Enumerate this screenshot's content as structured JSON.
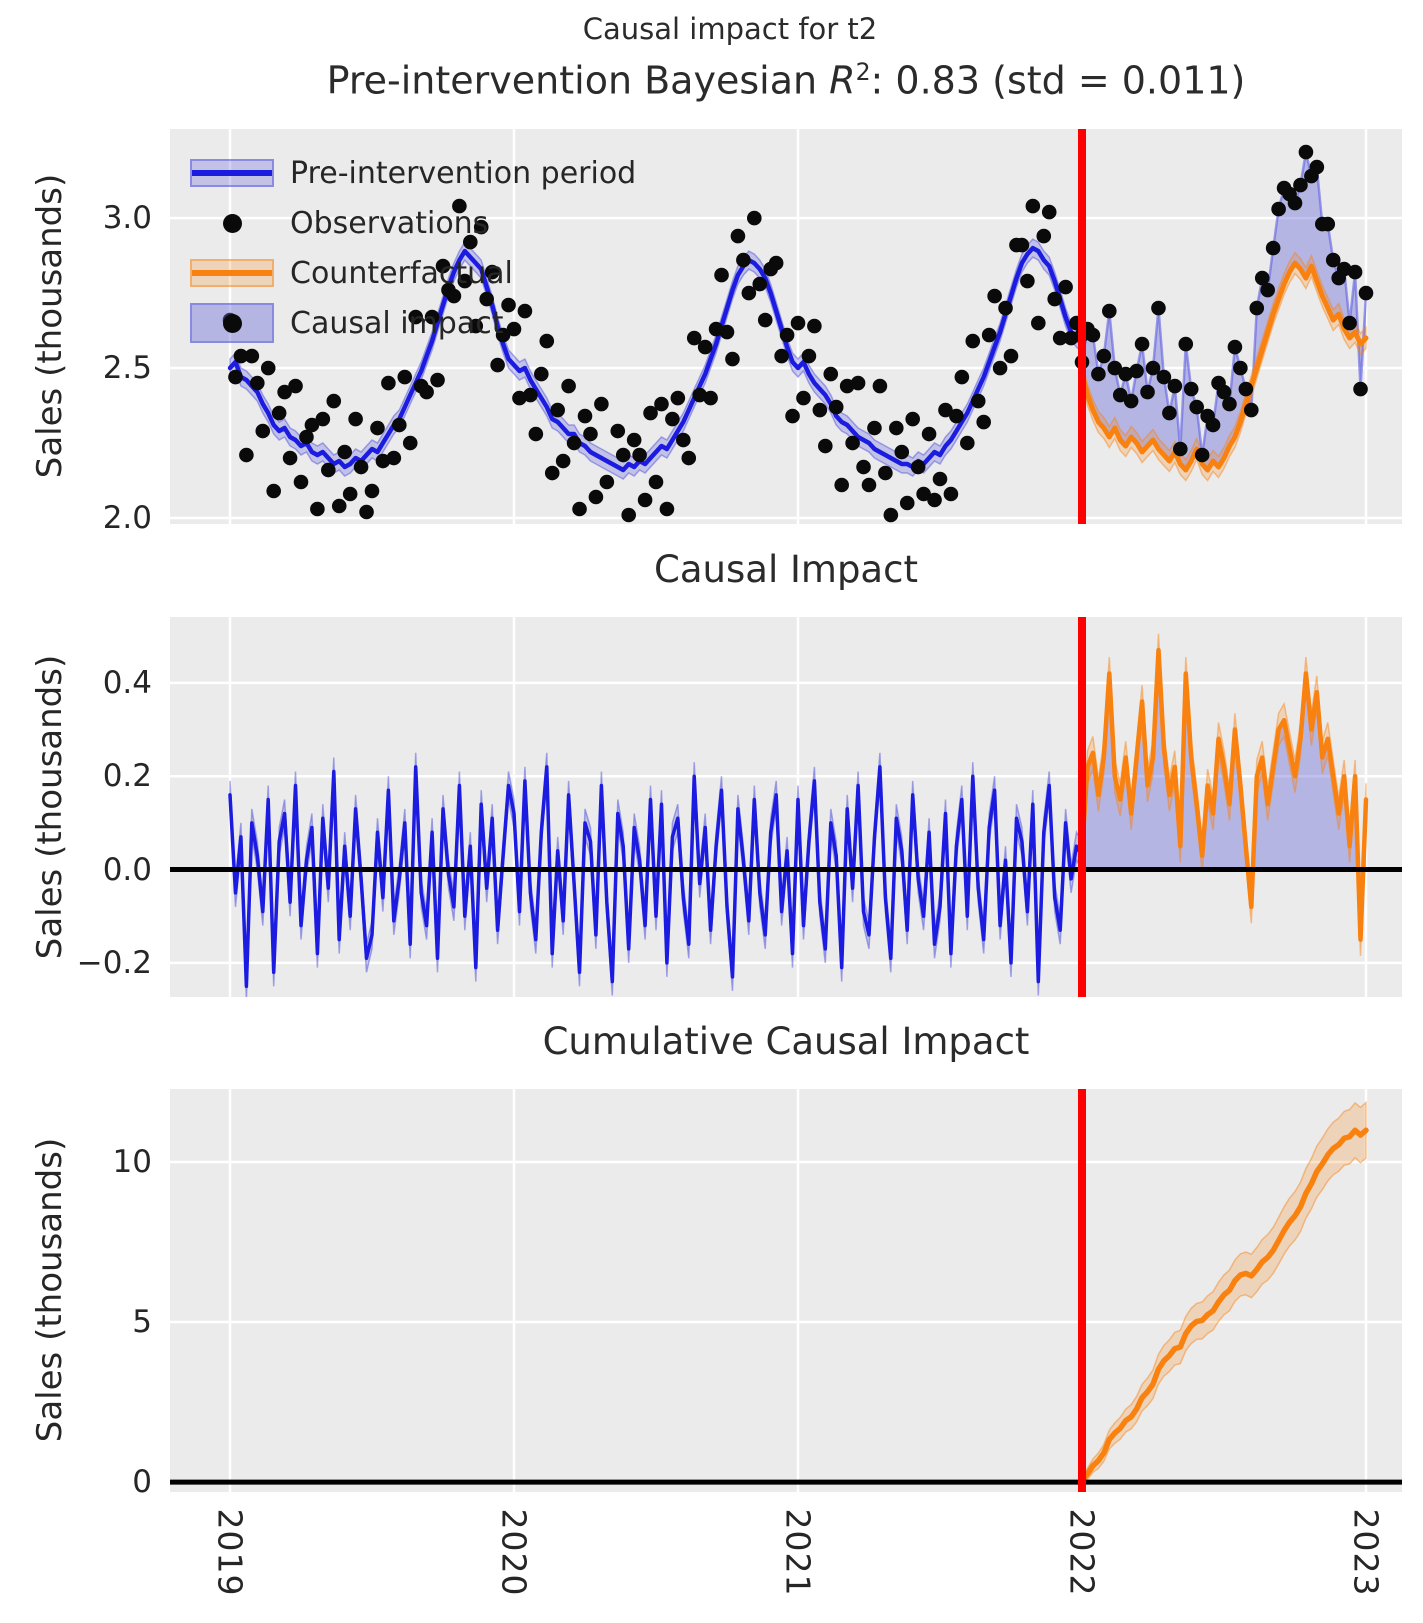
{
  "figure": {
    "suptitle": "Causal impact for t2",
    "title": {
      "prefix": "Pre-intervention Bayesian ",
      "stat_symbol": "R",
      "exponent": "2",
      "suffix": ": 0.83 (std = 0.011)"
    },
    "background": "#ffffff",
    "panel_background": "#ebebeb"
  },
  "colors": {
    "blue": "#1c1ce0",
    "blue_band": "rgba(70,70,220,0.25)",
    "blue_band_edge": "rgba(70,70,220,0.45)",
    "post_obs_line": "rgba(95,95,228,0.6)",
    "impact_fill": "rgba(108,108,216,0.42)",
    "orange": "#f8810f",
    "orange_band": "rgba(248,129,15,0.22)",
    "orange_band_edge": "rgba(248,129,15,0.45)",
    "red": "#ff0000",
    "grid": "#ffffff",
    "dot": "#0a0a0a",
    "panel_bg": "#ebebeb",
    "text": "#262626"
  },
  "legend": {
    "items": [
      {
        "label": "Pre-intervention period",
        "type": "band-line",
        "color": "#1c1ce0"
      },
      {
        "label": "Observations",
        "type": "dot",
        "color": "#0a0a0a"
      },
      {
        "label": "Counterfactual",
        "type": "band-line",
        "color": "#f8810f"
      },
      {
        "label": "Causal impact",
        "type": "patch-dot",
        "color": "rgba(108,108,216,0.42)"
      }
    ]
  },
  "axes": {
    "x": {
      "tick_values": [
        2019,
        2020,
        2021,
        2022,
        2023
      ],
      "tick_labels": [
        "2019",
        "2020",
        "2021",
        "2022",
        "2023"
      ],
      "lim": [
        2018.789,
        2023.127
      ]
    },
    "panels": [
      {
        "title": "",
        "ylabel": "Sales (thousands)",
        "ytick_values": [
          2.0,
          2.5,
          3.0
        ],
        "ytick_labels": [
          "2.0",
          "2.5",
          "3.0"
        ],
        "ylim": [
          1.98,
          3.297
        ]
      },
      {
        "title": "Causal Impact",
        "ylabel": "Sales (thousands)",
        "ytick_values": [
          -0.2,
          0.0,
          0.2,
          0.4
        ],
        "ytick_labels": [
          "−0.2",
          "0.0",
          "0.2",
          "0.4"
        ],
        "ylim": [
          -0.273,
          0.541
        ]
      },
      {
        "title": "Cumulative Causal Impact",
        "ylabel": "Sales (thousands)",
        "ytick_values": [
          0,
          5,
          10
        ],
        "ytick_labels": [
          "0",
          "5",
          "10"
        ],
        "ylim": [
          -0.31,
          12.28
        ]
      }
    ]
  },
  "intervention": {
    "x": 2022,
    "color": "#ff0000"
  },
  "chart_data": {
    "type": "line",
    "title": "Pre-intervention Bayesian R²: 0.83 (std = 0.011)",
    "x_unit": "year, weekly samples",
    "x_start": 2019.0,
    "dt_years": 0.0192307692,
    "intervention_x": 2022.0,
    "pre_band_halfwidth": 0.03,
    "post_band_halfwidth": 0.035,
    "cumulative_band_halfwidth_scale": 0.12,
    "final_cumulative_impact": 10.99,
    "derived": {
      "observations": "pre: pre_mean + pre_impact_obs_minus_mean; post: post_counterfactual_mean + post_impact_obs_minus_cf",
      "causal_impact_panel": "pre_impact_obs_minus_mean then post_impact_obs_minus_cf",
      "cumulative_impact": "cumulative sum of post_impact_obs_minus_cf"
    },
    "pre_mean": [
      2.5,
      2.52,
      2.47,
      2.46,
      2.44,
      2.42,
      2.38,
      2.35,
      2.31,
      2.29,
      2.3,
      2.27,
      2.26,
      2.24,
      2.25,
      2.22,
      2.21,
      2.22,
      2.2,
      2.18,
      2.19,
      2.17,
      2.18,
      2.2,
      2.19,
      2.21,
      2.23,
      2.22,
      2.25,
      2.28,
      2.31,
      2.33,
      2.37,
      2.41,
      2.45,
      2.49,
      2.54,
      2.59,
      2.65,
      2.71,
      2.77,
      2.82,
      2.86,
      2.89,
      2.87,
      2.85,
      2.83,
      2.77,
      2.71,
      2.64,
      2.58,
      2.53,
      2.51,
      2.49,
      2.5,
      2.46,
      2.43,
      2.4,
      2.37,
      2.33,
      2.32,
      2.3,
      2.28,
      2.28,
      2.25,
      2.24,
      2.22,
      2.21,
      2.2,
      2.19,
      2.18,
      2.17,
      2.16,
      2.18,
      2.17,
      2.19,
      2.18,
      2.2,
      2.22,
      2.24,
      2.23,
      2.26,
      2.29,
      2.32,
      2.36,
      2.4,
      2.44,
      2.48,
      2.53,
      2.58,
      2.64,
      2.7,
      2.76,
      2.81,
      2.84,
      2.86,
      2.85,
      2.83,
      2.8,
      2.75,
      2.69,
      2.63,
      2.57,
      2.52,
      2.5,
      2.52,
      2.48,
      2.45,
      2.43,
      2.41,
      2.38,
      2.34,
      2.32,
      2.31,
      2.29,
      2.27,
      2.26,
      2.25,
      2.23,
      2.22,
      2.21,
      2.2,
      2.19,
      2.18,
      2.18,
      2.17,
      2.19,
      2.18,
      2.2,
      2.22,
      2.21,
      2.24,
      2.26,
      2.29,
      2.32,
      2.35,
      2.39,
      2.43,
      2.47,
      2.52,
      2.57,
      2.62,
      2.68,
      2.74,
      2.8,
      2.85,
      2.88,
      2.9,
      2.89,
      2.86,
      2.84,
      2.79,
      2.73,
      2.67,
      2.62,
      2.6,
      2.58
    ],
    "pre_impact_obs_minus_mean": [
      0.16,
      -0.05,
      0.07,
      -0.25,
      0.1,
      0.03,
      -0.09,
      0.15,
      -0.22,
      0.06,
      0.12,
      -0.07,
      0.18,
      -0.12,
      0.02,
      0.09,
      -0.18,
      0.11,
      -0.04,
      0.21,
      -0.15,
      0.05,
      -0.1,
      0.13,
      -0.02,
      -0.19,
      -0.14,
      0.08,
      -0.06,
      0.17,
      -0.11,
      -0.02,
      0.1,
      -0.16,
      0.22,
      -0.05,
      -0.12,
      0.08,
      -0.19,
      0.13,
      -0.01,
      -0.08,
      0.18,
      -0.1,
      0.05,
      -0.21,
      0.14,
      -0.04,
      0.11,
      -0.13,
      0.03,
      0.18,
      0.12,
      -0.09,
      0.19,
      -0.05,
      -0.15,
      0.08,
      0.22,
      -0.18,
      0.04,
      -0.11,
      0.16,
      -0.03,
      -0.22,
      0.1,
      0.06,
      -0.14,
      0.18,
      -0.07,
      -0.24,
      0.12,
      0.05,
      -0.17,
      0.09,
      0.02,
      -0.12,
      0.15,
      -0.1,
      0.14,
      -0.2,
      0.07,
      0.11,
      -0.06,
      -0.16,
      0.2,
      -0.03,
      0.09,
      -0.13,
      0.05,
      0.17,
      -0.08,
      -0.23,
      0.13,
      0.02,
      -0.11,
      0.15,
      -0.05,
      -0.14,
      0.08,
      0.16,
      -0.09,
      0.04,
      -0.18,
      0.15,
      -0.12,
      0.06,
      0.19,
      -0.07,
      -0.17,
      0.1,
      0.03,
      -0.21,
      0.13,
      -0.04,
      0.18,
      -0.09,
      -0.14,
      0.07,
      0.22,
      -0.06,
      -0.19,
      0.11,
      0.04,
      -0.13,
      0.16,
      -0.02,
      -0.1,
      0.08,
      -0.16,
      -0.08,
      0.12,
      -0.18,
      0.05,
      0.15,
      -0.1,
      0.2,
      -0.04,
      -0.15,
      0.09,
      0.17,
      -0.12,
      0.02,
      -0.2,
      0.11,
      0.06,
      -0.09,
      0.14,
      -0.24,
      0.08,
      0.18,
      -0.06,
      -0.13,
      0.1,
      -0.02,
      0.05,
      0.03
    ],
    "post_counterfactual_mean": [
      2.48,
      2.41,
      2.36,
      2.32,
      2.3,
      2.27,
      2.3,
      2.26,
      2.24,
      2.27,
      2.25,
      2.22,
      2.24,
      2.26,
      2.23,
      2.21,
      2.19,
      2.22,
      2.18,
      2.16,
      2.19,
      2.23,
      2.18,
      2.16,
      2.19,
      2.17,
      2.2,
      2.24,
      2.27,
      2.32,
      2.38,
      2.44,
      2.5,
      2.56,
      2.62,
      2.68,
      2.73,
      2.78,
      2.82,
      2.85,
      2.83,
      2.8,
      2.84,
      2.79,
      2.74,
      2.7,
      2.66,
      2.68,
      2.63,
      2.6,
      2.62,
      2.58,
      2.6
    ],
    "post_impact_obs_minus_cf": [
      0.04,
      0.22,
      0.25,
      0.16,
      0.24,
      0.42,
      0.2,
      0.15,
      0.24,
      0.12,
      0.24,
      0.36,
      0.18,
      0.24,
      0.47,
      0.26,
      0.16,
      0.22,
      0.05,
      0.42,
      0.24,
      0.14,
      0.03,
      0.18,
      0.12,
      0.28,
      0.22,
      0.14,
      0.3,
      0.18,
      0.05,
      -0.08,
      0.2,
      0.24,
      0.14,
      0.22,
      0.3,
      0.32,
      0.26,
      0.2,
      0.28,
      0.42,
      0.3,
      0.38,
      0.24,
      0.28,
      0.2,
      0.12,
      0.2,
      0.05,
      0.2,
      -0.15,
      0.15
    ]
  }
}
